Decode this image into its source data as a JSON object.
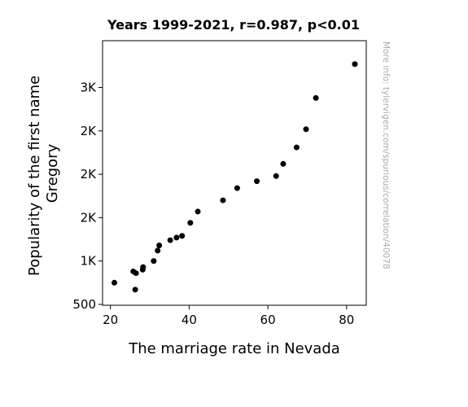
{
  "chart_data": {
    "type": "scatter",
    "title": "Years 1999-2021, r=0.987, p<0.01",
    "xlabel": "The marriage rate in Nevada",
    "ylabel_lines": [
      "Popularity of the first name",
      "Gregory"
    ],
    "watermark": "More info: tylervigen.com/spurious/correlation/40078",
    "xlim": [
      18,
      85
    ],
    "ylim": [
      490,
      3540
    ],
    "x_ticks": [
      20,
      40,
      60,
      80
    ],
    "y_ticks": [
      {
        "value": 500,
        "label": "500"
      },
      {
        "value": 1000,
        "label": "1K"
      },
      {
        "value": 1500,
        "label": "2K"
      },
      {
        "value": 2000,
        "label": "2K"
      },
      {
        "value": 2500,
        "label": "2K"
      },
      {
        "value": 3000,
        "label": "3K"
      }
    ],
    "grid": false,
    "point_color": "#000000",
    "points": [
      {
        "x": 82.1,
        "y": 3270
      },
      {
        "x": 72.2,
        "y": 2880
      },
      {
        "x": 69.7,
        "y": 2520
      },
      {
        "x": 67.3,
        "y": 2310
      },
      {
        "x": 63.9,
        "y": 2120
      },
      {
        "x": 62.1,
        "y": 1980
      },
      {
        "x": 57.2,
        "y": 1920
      },
      {
        "x": 52.2,
        "y": 1840
      },
      {
        "x": 48.6,
        "y": 1700
      },
      {
        "x": 42.2,
        "y": 1570
      },
      {
        "x": 40.3,
        "y": 1440
      },
      {
        "x": 38.2,
        "y": 1290
      },
      {
        "x": 36.8,
        "y": 1270
      },
      {
        "x": 35.2,
        "y": 1240
      },
      {
        "x": 32.4,
        "y": 1180
      },
      {
        "x": 32.0,
        "y": 1120
      },
      {
        "x": 31.0,
        "y": 1000
      },
      {
        "x": 28.3,
        "y": 930
      },
      {
        "x": 28.2,
        "y": 900
      },
      {
        "x": 26.5,
        "y": 860
      },
      {
        "x": 25.8,
        "y": 880
      },
      {
        "x": 21.0,
        "y": 750
      },
      {
        "x": 26.3,
        "y": 670
      }
    ]
  }
}
